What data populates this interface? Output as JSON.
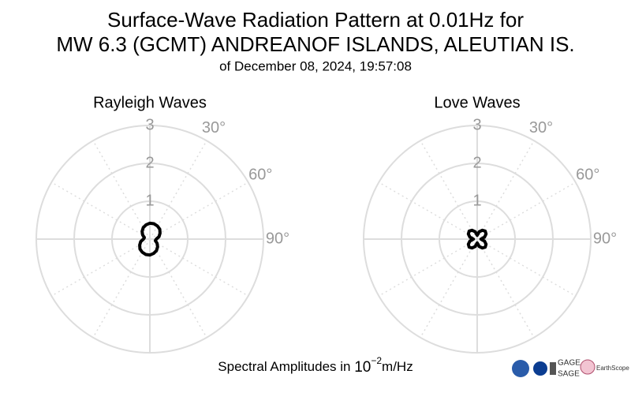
{
  "figure": {
    "title": [
      "Surface-Wave Radiation Pattern at 0.01Hz for",
      "MW 6.3 (GCMT) ANDREANOF ISLANDS, ALEUTIAN IS."
    ],
    "subtitle": "of December 08, 2024, 19:57:08",
    "footer": {
      "text": "Spectral Amplitudes in",
      "base": "10",
      "exponent": "−2",
      "unit": "m/Hz"
    },
    "logos": [
      "GAGE",
      "SAGE",
      "EarthScope"
    ]
  },
  "chart_data": [
    {
      "type": "polar",
      "title": "Rayleigh Waves",
      "color": "#000000",
      "grid": true,
      "theta": [
        0,
        15,
        30,
        45,
        60,
        75,
        90,
        105,
        120,
        135,
        150,
        165,
        180,
        195,
        210,
        225,
        240,
        255,
        270,
        285,
        300,
        315,
        330,
        345
      ],
      "values": [
        0.42,
        0.42,
        0.4,
        0.37,
        0.31,
        0.25,
        0.17,
        0.15,
        0.22,
        0.29,
        0.35,
        0.39,
        0.42,
        0.42,
        0.4,
        0.37,
        0.31,
        0.25,
        0.17,
        0.15,
        0.22,
        0.29,
        0.35,
        0.39
      ],
      "rlim": [
        0,
        3
      ],
      "rticks": [
        1,
        2,
        3
      ],
      "thetaticks": [
        {
          "value": 30,
          "label": "30°"
        },
        {
          "value": 60,
          "label": "60°"
        },
        {
          "value": 90,
          "label": "90°"
        }
      ]
    },
    {
      "type": "polar",
      "title": "Love Waves",
      "color": "#000000",
      "grid": true,
      "theta": [
        0,
        15,
        30,
        45,
        60,
        75,
        90,
        105,
        120,
        135,
        150,
        165,
        180,
        195,
        210,
        225,
        240,
        255,
        270,
        285,
        300,
        315,
        330,
        345
      ],
      "values": [
        0.1,
        0.2,
        0.27,
        0.3,
        0.27,
        0.2,
        0.1,
        0.2,
        0.27,
        0.3,
        0.27,
        0.2,
        0.1,
        0.2,
        0.27,
        0.3,
        0.27,
        0.2,
        0.1,
        0.2,
        0.27,
        0.3,
        0.27,
        0.2
      ],
      "rlim": [
        0,
        3
      ],
      "rticks": [
        1,
        2,
        3
      ],
      "thetaticks": [
        {
          "value": 30,
          "label": "30°"
        },
        {
          "value": 60,
          "label": "60°"
        },
        {
          "value": 90,
          "label": "90°"
        }
      ]
    }
  ]
}
